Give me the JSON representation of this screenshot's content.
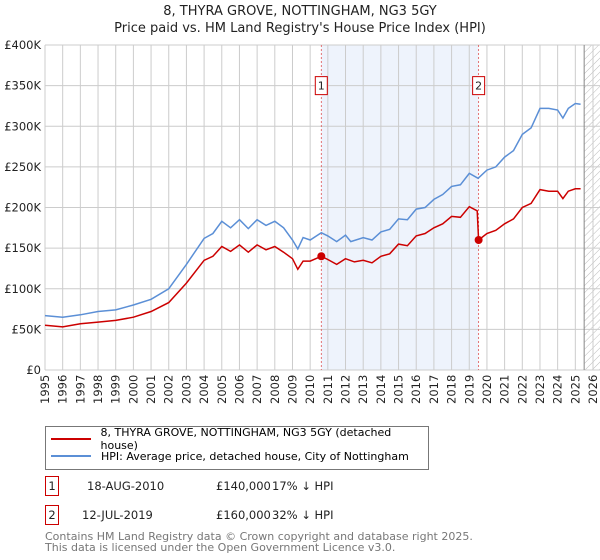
{
  "title": "8, THYRA GROVE, NOTTINGHAM, NG3 5GY",
  "subtitle": "Price paid vs. HM Land Registry's House Price Index (HPI)",
  "chart_data": {
    "type": "line",
    "title": "8, THYRA GROVE, NOTTINGHAM, NG3 5GY",
    "xlim": [
      1995,
      2026
    ],
    "ylim": [
      0,
      400000
    ],
    "xticks": [
      "1995",
      "1996",
      "1997",
      "1998",
      "1999",
      "2000",
      "2001",
      "2002",
      "2003",
      "2004",
      "2005",
      "2006",
      "2007",
      "2008",
      "2009",
      "2010",
      "2011",
      "2012",
      "2013",
      "2014",
      "2015",
      "2016",
      "2017",
      "2018",
      "2019",
      "2020",
      "2021",
      "2022",
      "2023",
      "2024",
      "2025",
      "2026"
    ],
    "yticks": [
      {
        "v": 0,
        "label": "£0"
      },
      {
        "v": 50000,
        "label": "£50K"
      },
      {
        "v": 100000,
        "label": "£100K"
      },
      {
        "v": 150000,
        "label": "£150K"
      },
      {
        "v": 200000,
        "label": "£200K"
      },
      {
        "v": 250000,
        "label": "£250K"
      },
      {
        "v": 300000,
        "label": "£300K"
      },
      {
        "v": 350000,
        "label": "£350K"
      },
      {
        "v": 400000,
        "label": "£400K"
      }
    ],
    "shaded_range": [
      2010.63,
      2019.53
    ],
    "hatched_from": 2025.5,
    "series": [
      {
        "name": "8, THYRA GROVE, NOTTINGHAM, NG3 5GY (detached house)",
        "color": "#cc0000",
        "x": [
          1995,
          1996,
          1997,
          1998,
          1999,
          2000,
          2001,
          2002,
          2003,
          2004,
          2004.5,
          2005,
          2005.5,
          2006,
          2006.5,
          2007,
          2007.5,
          2008,
          2008.5,
          2009,
          2009.3,
          2009.6,
          2010,
          2010.63,
          2011,
          2011.5,
          2012,
          2012.5,
          2013,
          2013.5,
          2014,
          2014.5,
          2015,
          2015.5,
          2016,
          2016.5,
          2017,
          2017.5,
          2018,
          2018.5,
          2019,
          2019.45,
          2019.53,
          2020,
          2020.5,
          2021,
          2021.5,
          2022,
          2022.5,
          2023,
          2023.5,
          2024,
          2024.3,
          2024.6,
          2025,
          2025.3
        ],
        "y": [
          55000,
          53000,
          57000,
          59000,
          61000,
          65000,
          72000,
          83000,
          107000,
          135000,
          140000,
          152000,
          146000,
          154000,
          145000,
          154000,
          148000,
          152000,
          145000,
          137000,
          124000,
          134000,
          134000,
          140000,
          136000,
          130000,
          137000,
          133000,
          135000,
          132000,
          140000,
          143000,
          155000,
          153000,
          165000,
          168000,
          175000,
          180000,
          189000,
          188000,
          201000,
          196000,
          160000,
          168000,
          172000,
          180000,
          186000,
          200000,
          205000,
          222000,
          220000,
          220000,
          211000,
          220000,
          223000,
          223000
        ]
      },
      {
        "name": "HPI: Average price, detached house, City of Nottingham",
        "color": "#5b8fd6",
        "x": [
          1995,
          1996,
          1997,
          1998,
          1999,
          2000,
          2001,
          2002,
          2003,
          2004,
          2004.5,
          2005,
          2005.5,
          2006,
          2006.5,
          2007,
          2007.5,
          2008,
          2008.5,
          2009,
          2009.3,
          2009.6,
          2010,
          2010.63,
          2011,
          2011.5,
          2012,
          2012.3,
          2013,
          2013.5,
          2014,
          2014.5,
          2015,
          2015.5,
          2016,
          2016.5,
          2017,
          2017.5,
          2018,
          2018.5,
          2019,
          2019.5,
          2020,
          2020.5,
          2021,
          2021.5,
          2022,
          2022.5,
          2023,
          2023.5,
          2024,
          2024.3,
          2024.6,
          2025,
          2025.3
        ],
        "y": [
          67000,
          65000,
          68000,
          72000,
          74000,
          80000,
          87000,
          100000,
          130000,
          162000,
          168000,
          183000,
          175000,
          185000,
          174000,
          185000,
          178000,
          183000,
          175000,
          160000,
          149000,
          163000,
          160000,
          169000,
          165000,
          158000,
          166000,
          158000,
          163000,
          160000,
          170000,
          173000,
          186000,
          185000,
          198000,
          200000,
          210000,
          216000,
          226000,
          228000,
          242000,
          236000,
          246000,
          250000,
          262000,
          270000,
          290000,
          298000,
          322000,
          322000,
          320000,
          310000,
          322000,
          328000,
          327000
        ]
      }
    ],
    "sales": [
      {
        "label": "1",
        "x": 2010.63,
        "y": 140000
      },
      {
        "label": "2",
        "x": 2019.53,
        "y": 160000
      }
    ]
  },
  "legend": {
    "red": "8, THYRA GROVE, NOTTINGHAM, NG3 5GY (detached house)",
    "blue": "HPI: Average price, detached house, City of Nottingham"
  },
  "transactions": [
    {
      "num": "1",
      "date": "18-AUG-2010",
      "price": "£140,000",
      "diff": "17% ↓ HPI"
    },
    {
      "num": "2",
      "date": "12-JUL-2019",
      "price": "£160,000",
      "diff": "32% ↓ HPI"
    }
  ],
  "footer": [
    "Contains HM Land Registry data © Crown copyright and database right 2025.",
    "This data is licensed under the Open Government Licence v3.0."
  ]
}
